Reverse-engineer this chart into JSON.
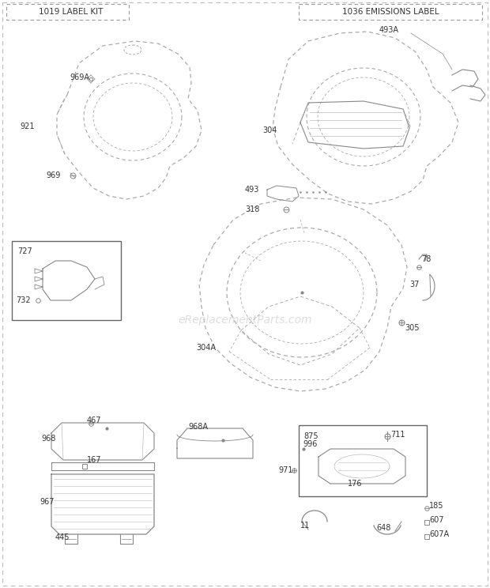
{
  "bg_color": "#ffffff",
  "line_color": "#888888",
  "text_color": "#333333",
  "watermark": "eReplacementParts.com",
  "label_box_1": "1019 LABEL KIT",
  "label_box_2": "1036 EMISSIONS LABEL"
}
